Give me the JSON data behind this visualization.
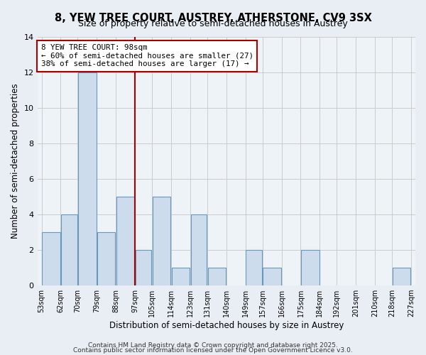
{
  "title": "8, YEW TREE COURT, AUSTREY, ATHERSTONE, CV9 3SX",
  "subtitle": "Size of property relative to semi-detached houses in Austrey",
  "xlabel": "Distribution of semi-detached houses by size in Austrey",
  "ylabel": "Number of semi-detached properties",
  "bin_edges": [
    53,
    62,
    70,
    79,
    88,
    97,
    105,
    114,
    123,
    131,
    140,
    149,
    157,
    166,
    175,
    184,
    192,
    201,
    210,
    218,
    227
  ],
  "bar_heights": [
    3,
    4,
    12,
    3,
    5,
    2,
    5,
    1,
    4,
    1,
    0,
    2,
    1,
    0,
    2,
    0,
    0,
    0,
    0,
    1
  ],
  "bar_color": "#ccdcec",
  "bar_edge_color": "#6699bb",
  "vline_x": 97,
  "vline_color": "#aa0000",
  "annotation_title": "8 YEW TREE COURT: 98sqm",
  "annotation_line1": "← 60% of semi-detached houses are smaller (27)",
  "annotation_line2": "38% of semi-detached houses are larger (17) →",
  "annotation_box_facecolor": "#ffffff",
  "annotation_box_edgecolor": "#aa0000",
  "ylim": [
    0,
    14
  ],
  "yticks": [
    0,
    2,
    4,
    6,
    8,
    10,
    12,
    14
  ],
  "tick_labels": [
    "53sqm",
    "62sqm",
    "70sqm",
    "79sqm",
    "88sqm",
    "97sqm",
    "105sqm",
    "114sqm",
    "123sqm",
    "131sqm",
    "140sqm",
    "149sqm",
    "157sqm",
    "166sqm",
    "175sqm",
    "184sqm",
    "192sqm",
    "201sqm",
    "210sqm",
    "218sqm",
    "227sqm"
  ],
  "footer1": "Contains HM Land Registry data © Crown copyright and database right 2025.",
  "footer2": "Contains public sector information licensed under the Open Government Licence v3.0.",
  "bg_color": "#e8eef4",
  "plot_bg_color": "#eef3f8",
  "grid_color": "#cccccc"
}
